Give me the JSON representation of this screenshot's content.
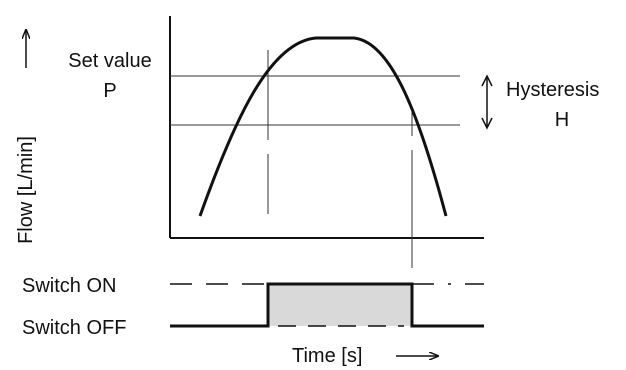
{
  "labels": {
    "y_axis": "Flow [L/min]",
    "x_axis": "Time [s]",
    "set_value": "Set value",
    "set_value_symbol": "P",
    "hysteresis": "Hysteresis",
    "hysteresis_symbol": "H",
    "switch_on": "Switch ON",
    "switch_off": "Switch OFF"
  },
  "colors": {
    "line": "#111111",
    "thin": "#333333",
    "fill": "#d9d9d9",
    "background": "#ffffff"
  }
}
